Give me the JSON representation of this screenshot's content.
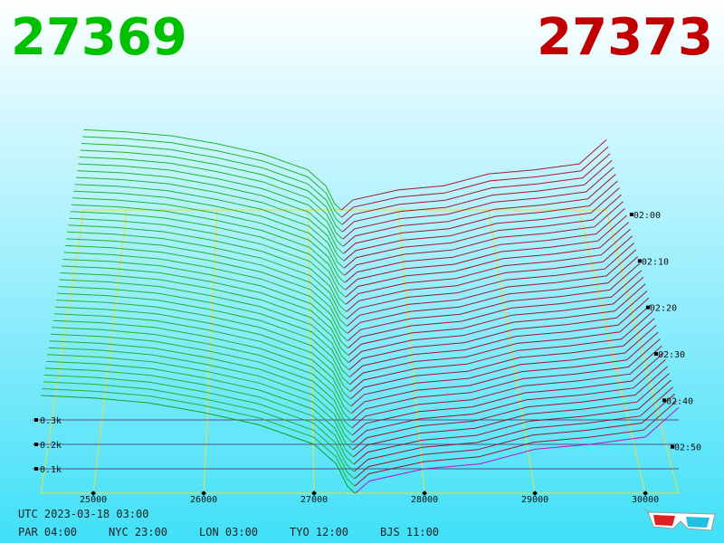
{
  "chart_data": {
    "type": "depth",
    "bid_price": 27369,
    "ask_price": 27373,
    "bid_color": "#00c000",
    "ask_color": "#c00000",
    "series": [
      {
        "color": "#10b010",
        "front_color": "#00a000",
        "x": [
          24525,
          25000,
          25500,
          26000,
          26500,
          27000,
          27200,
          27300,
          27369
        ],
        "values": [
          400,
          390,
          370,
          330,
          280,
          200,
          120,
          30,
          0
        ]
      },
      {
        "color": "#a00010",
        "front_color": "#c000c0",
        "x": [
          27373,
          27500,
          28000,
          28500,
          29000,
          29500,
          30000,
          30300
        ],
        "values": [
          0,
          50,
          100,
          120,
          180,
          200,
          230,
          350
        ]
      }
    ],
    "xlim": [
      24525,
      30300
    ],
    "xticks": [
      25000,
      26000,
      27000,
      28000,
      29000,
      30000
    ],
    "yticks": [
      {
        "value": 100,
        "label": "0.1k"
      },
      {
        "value": 200,
        "label": "0.2k"
      },
      {
        "value": 300,
        "label": "0.3k"
      }
    ],
    "times": [
      "02:00",
      "02:10",
      "02:20",
      "02:30",
      "02:40",
      "02:50"
    ],
    "footer": {
      "utc": "UTC 2023-03-18 03:00",
      "zones": [
        "PAR 04:00",
        "NYC 23:00",
        "LON 03:00",
        "TYO 12:00",
        "BJS 11:00"
      ]
    }
  }
}
